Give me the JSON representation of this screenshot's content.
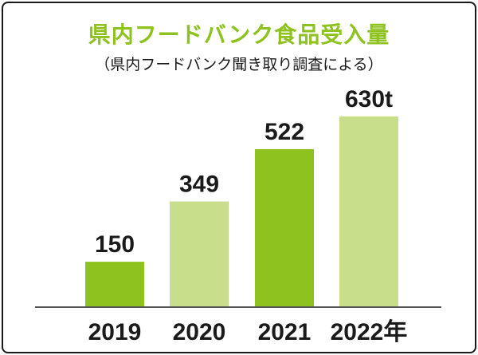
{
  "chart_data": {
    "type": "bar",
    "title": "県内フードバンク食品受入量",
    "subtitle": "（県内フードバンク聞き取り調査による）",
    "categories": [
      "2019",
      "2020",
      "2021",
      "2022年"
    ],
    "values": [
      150,
      349,
      522,
      630
    ],
    "value_labels": [
      "150",
      "349",
      "522",
      "630t"
    ],
    "xlabel": "",
    "ylabel": "",
    "ylim": [
      0,
      630
    ],
    "grid": false,
    "legend": "none"
  },
  "colors": {
    "title": "#8dc21f",
    "bar_dark": "#8dc21f",
    "bar_light": "#c8de8a",
    "baseline": "#555555",
    "frame": "#1a1a1a"
  }
}
